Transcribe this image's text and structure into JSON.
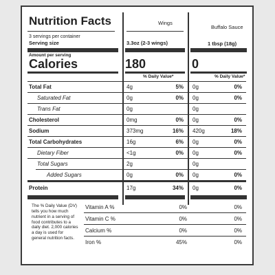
{
  "title": "Nutrition Facts",
  "servings_per_container": "3 servings per container",
  "serving_size_label": "Serving size",
  "columns": {
    "wings": "Wings",
    "sauce": "Buffalo Sauce"
  },
  "serving_sizes": {
    "wings": "3.3oz (2-3 wings)",
    "sauce": "1 tbsp (18g)"
  },
  "amount_per_serving": "Amount per serving",
  "calories_label": "Calories",
  "calories": {
    "wings": "180",
    "sauce": "0"
  },
  "dv_header": "% Daily Value*",
  "nutrients": [
    {
      "label": "Total Fat",
      "wings_amt": "4g",
      "wings_dv": "5%",
      "sauce_amt": "0g",
      "sauce_dv": "0%"
    },
    {
      "label": "Saturated Fat",
      "wings_amt": "0g",
      "wings_dv": "0%",
      "sauce_amt": "0g",
      "sauce_dv": "0%"
    },
    {
      "label": "Trans Fat",
      "wings_amt": "0g",
      "wings_dv": "",
      "sauce_amt": "0g",
      "sauce_dv": ""
    },
    {
      "label": "Cholesterol",
      "wings_amt": "0mg",
      "wings_dv": "0%",
      "sauce_amt": "0g",
      "sauce_dv": "0%"
    },
    {
      "label": "Sodium",
      "wings_amt": "373mg",
      "wings_dv": "16%",
      "sauce_amt": "420g",
      "sauce_dv": "18%"
    },
    {
      "label": "Total Carbohydrates",
      "wings_amt": "16g",
      "wings_dv": "6%",
      "sauce_amt": "0g",
      "sauce_dv": "0%"
    },
    {
      "label": "Dietary Fiber",
      "wings_amt": "<1g",
      "wings_dv": "0%",
      "sauce_amt": "0g",
      "sauce_dv": "0%"
    },
    {
      "label": "Total Sugars",
      "wings_amt": "2g",
      "wings_dv": "",
      "sauce_amt": "0g",
      "sauce_dv": ""
    },
    {
      "label": "Added Sugars",
      "wings_amt": "0g",
      "wings_dv": "0%",
      "sauce_amt": "0g",
      "sauce_dv": "0%"
    },
    {
      "label": "Protein",
      "wings_amt": "17g",
      "wings_dv": "34%",
      "sauce_amt": "0g",
      "sauce_dv": "0%"
    }
  ],
  "footnote": "The % Daily Value (DV) tells you how much nutrient in a serving of food contributes to a daily diet. 2,000 calories a day is used for general nutrition facts.",
  "vitamins": [
    {
      "label": "Vitamin A %",
      "wings": "0%",
      "sauce": "0%"
    },
    {
      "label": "Vitamin C %",
      "wings": "0%",
      "sauce": "0%"
    },
    {
      "label": "Calcium %",
      "wings": "0%",
      "sauce": "0%"
    },
    {
      "label": "Iron %",
      "wings": "45%",
      "sauce": "0%"
    }
  ]
}
